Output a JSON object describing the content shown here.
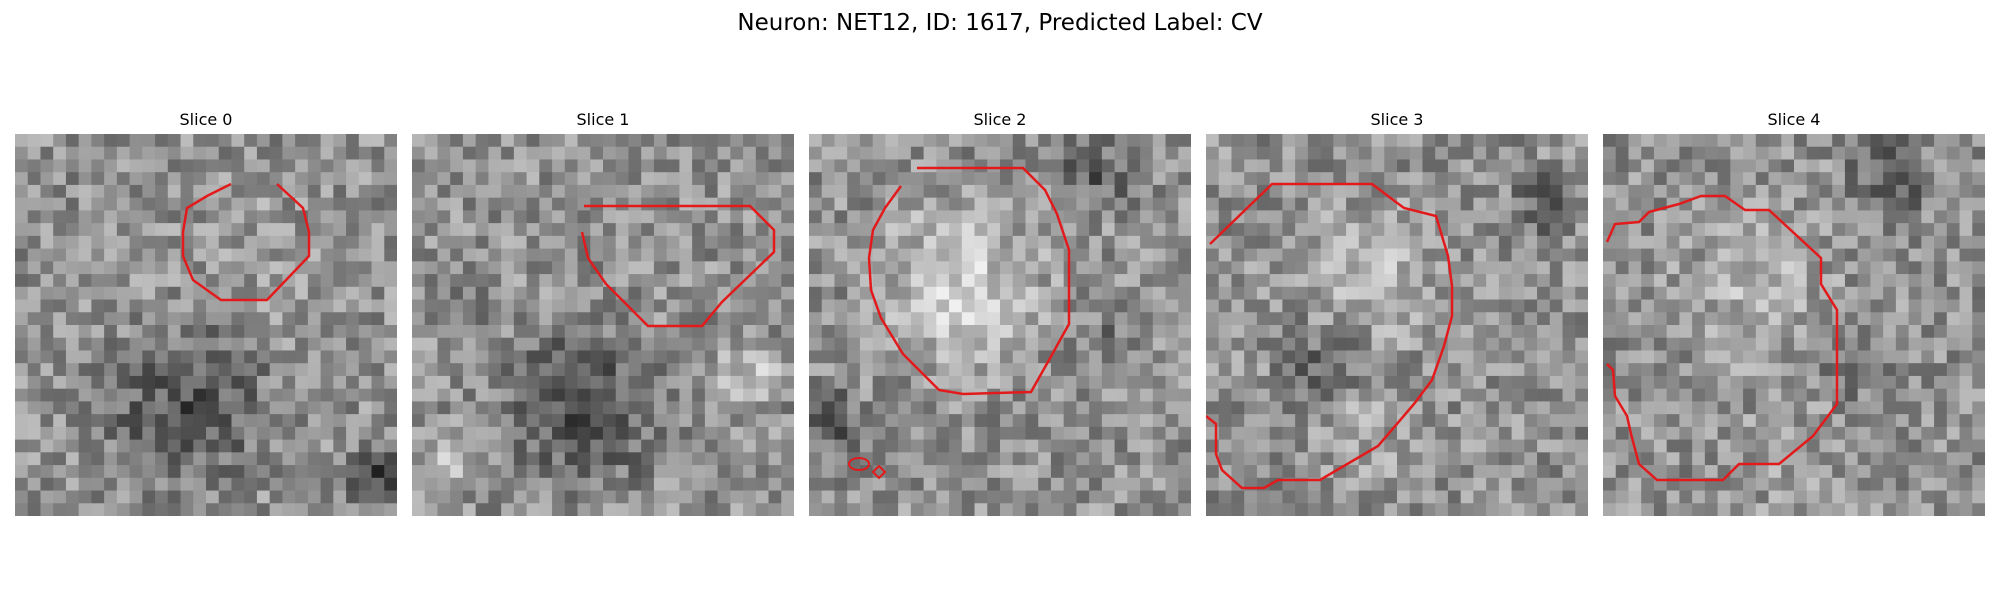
{
  "figure": {
    "title": "Neuron: NET12, ID: 1617, Predicted Label: CV",
    "contour_color": "#e31a1c",
    "colormap": "grayscale"
  },
  "panels": [
    {
      "title": "Slice 0"
    },
    {
      "title": "Slice 1"
    },
    {
      "title": "Slice 2"
    },
    {
      "title": "Slice 3"
    },
    {
      "title": "Slice 4"
    }
  ]
}
